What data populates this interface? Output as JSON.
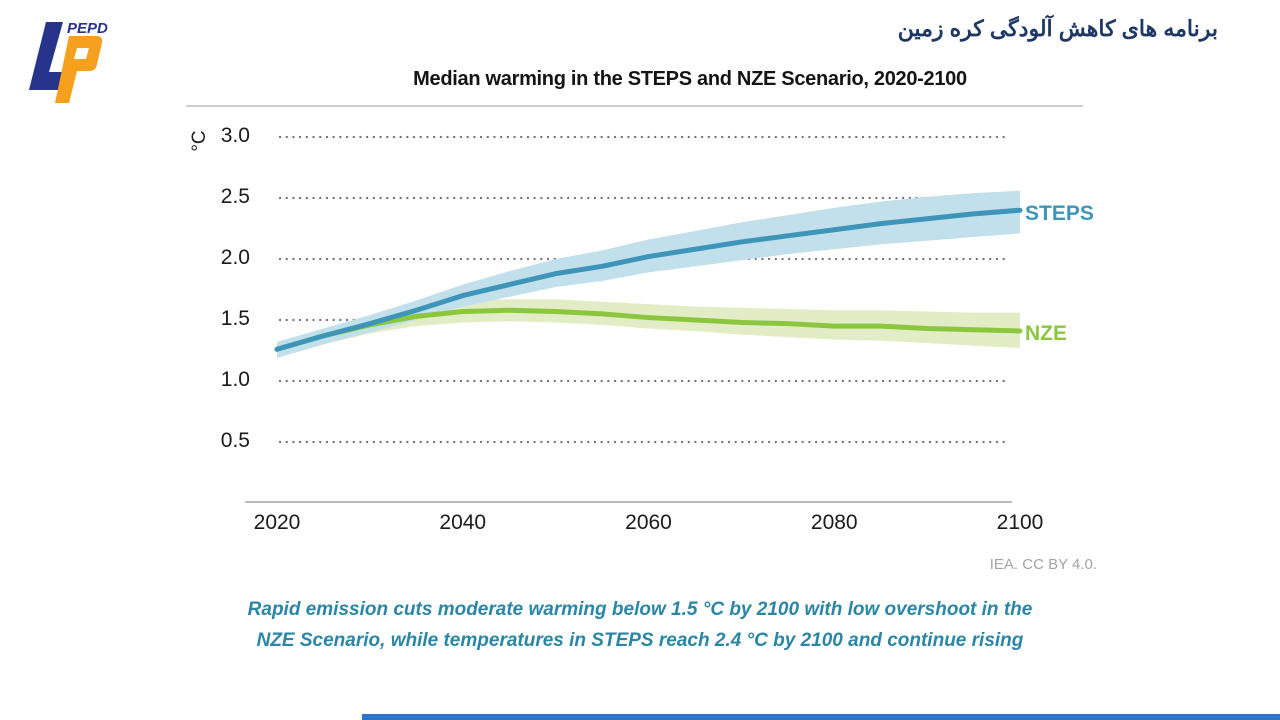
{
  "header": {
    "logo_text": "PEPD",
    "farsi_title": "برنامه های کاهش آلودگی کره زمین",
    "farsi_color": "#1e3765",
    "logo_navy": "#27348b",
    "logo_orange": "#f7a01d"
  },
  "chart": {
    "title": "Median warming in the STEPS and NZE Scenario, 2020-2100",
    "unit_label": "°C",
    "attribution": "IEA. CC BY 4.0.",
    "gridline_color": "#6e6e6e",
    "axis_line_color": "#a6a6a6",
    "top_rule_color": "#bfbfbf"
  },
  "chart_data": {
    "type": "line",
    "title": "Median warming in the STEPS and NZE Scenario, 2020-2100",
    "xlabel": "",
    "ylabel": "°C",
    "x": [
      2020,
      2025,
      2030,
      2035,
      2040,
      2045,
      2050,
      2055,
      2060,
      2065,
      2070,
      2075,
      2080,
      2085,
      2090,
      2095,
      2100
    ],
    "xticks": [
      "2020",
      "2040",
      "2060",
      "2080",
      "2100"
    ],
    "yticks": [
      "3.0",
      "2.5",
      "2.0",
      "1.5",
      "1.0",
      "0.5"
    ],
    "ylim": [
      0,
      3.25
    ],
    "grid": "dotted-horizontal",
    "legend_position": "right-of-line-ends",
    "series": [
      {
        "name": "STEPS",
        "color": "#3e95b8",
        "band_color": "#c1e0ec",
        "values": [
          1.26,
          1.37,
          1.47,
          1.58,
          1.7,
          1.79,
          1.88,
          1.94,
          2.02,
          2.08,
          2.14,
          2.19,
          2.24,
          2.29,
          2.33,
          2.37,
          2.4
        ],
        "upper": [
          1.32,
          1.43,
          1.54,
          1.66,
          1.79,
          1.9,
          2.0,
          2.07,
          2.16,
          2.23,
          2.3,
          2.36,
          2.42,
          2.47,
          2.51,
          2.54,
          2.56
        ],
        "lower": [
          1.19,
          1.3,
          1.4,
          1.5,
          1.61,
          1.69,
          1.77,
          1.82,
          1.89,
          1.94,
          1.99,
          2.04,
          2.08,
          2.12,
          2.15,
          2.18,
          2.21
        ]
      },
      {
        "name": "NZE",
        "color": "#8cc63e",
        "band_color": "#e2ecc5",
        "values": [
          1.26,
          1.37,
          1.46,
          1.53,
          1.57,
          1.58,
          1.57,
          1.55,
          1.52,
          1.5,
          1.48,
          1.47,
          1.45,
          1.45,
          1.43,
          1.42,
          1.41
        ],
        "upper": [
          1.32,
          1.43,
          1.53,
          1.61,
          1.66,
          1.67,
          1.67,
          1.65,
          1.63,
          1.61,
          1.6,
          1.59,
          1.58,
          1.58,
          1.57,
          1.56,
          1.56
        ],
        "lower": [
          1.19,
          1.3,
          1.39,
          1.45,
          1.48,
          1.49,
          1.48,
          1.46,
          1.43,
          1.41,
          1.38,
          1.36,
          1.34,
          1.33,
          1.31,
          1.29,
          1.27
        ]
      }
    ]
  },
  "caption": {
    "line1": "Rapid emission cuts moderate warming below 1.5 °C by 2100 with low overshoot in the",
    "line2": "NZE Scenario, while temperatures in STEPS reach 2.4 °C by 2100 and continue rising",
    "color": "#2b86a6"
  },
  "footer": {
    "bar_color": "#2e74c9"
  }
}
